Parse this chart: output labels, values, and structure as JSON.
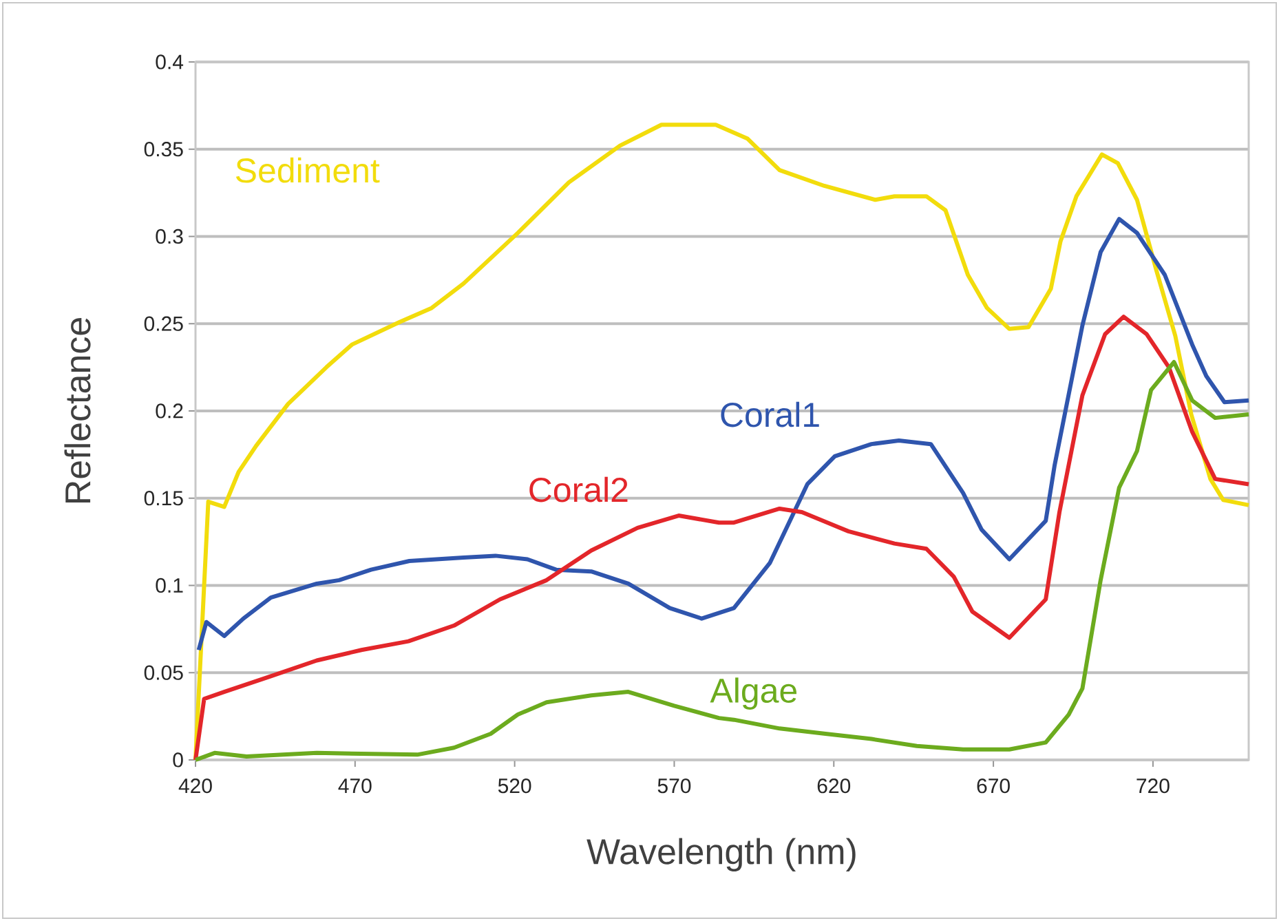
{
  "chart_data": {
    "type": "line",
    "xlabel": "Wavelength (nm)",
    "ylabel": "Reflectance",
    "xlim": [
      420,
      750
    ],
    "xticks": [
      420,
      470,
      520,
      570,
      620,
      670,
      720
    ],
    "ylim": [
      0,
      0.4
    ],
    "yticks": [
      0,
      0.05,
      0.1,
      0.15,
      0.2,
      0.25,
      0.3,
      0.35,
      0.4
    ],
    "grid": "y",
    "marker": "none",
    "line_style": "solid",
    "series": [
      {
        "name": "Sediment",
        "color": "#f2dc0c",
        "x": [
          420,
          424,
          429,
          433.5,
          439,
          449,
          461,
          469,
          484,
          494,
          504,
          521,
          537,
          553,
          566,
          583,
          593,
          603,
          617,
          633,
          639,
          649,
          655,
          662,
          668,
          675,
          681,
          688,
          691,
          696,
          704,
          709,
          715,
          721,
          727,
          732,
          738,
          742,
          750
        ],
        "values": [
          0,
          0.148,
          0.145,
          0.165,
          0.18,
          0.204,
          0.225,
          0.238,
          0.251,
          0.259,
          0.273,
          0.302,
          0.331,
          0.352,
          0.364,
          0.364,
          0.356,
          0.338,
          0.329,
          0.321,
          0.323,
          0.323,
          0.315,
          0.278,
          0.259,
          0.247,
          0.248,
          0.27,
          0.297,
          0.323,
          0.347,
          0.342,
          0.321,
          0.281,
          0.243,
          0.198,
          0.161,
          0.149,
          0.146
        ]
      },
      {
        "name": "Coral1",
        "color": "#2f55ad",
        "x": [
          421,
          423.4,
          429,
          435,
          443.6,
          458,
          465,
          475,
          487,
          504,
          514,
          524,
          533,
          544,
          555.6,
          568.6,
          578.6,
          588.7,
          600,
          611.7,
          620.3,
          631.8,
          640.4,
          650.4,
          660.5,
          666.3,
          675,
          686.4,
          689.2,
          697.9,
          703.6,
          709.4,
          715,
          723.7,
          732.3,
          736.7,
          742.4,
          750
        ],
        "values": [
          0.063,
          0.079,
          0.071,
          0.081,
          0.093,
          0.101,
          0.103,
          0.109,
          0.114,
          0.116,
          0.117,
          0.115,
          0.109,
          0.108,
          0.101,
          0.087,
          0.081,
          0.087,
          0.113,
          0.158,
          0.174,
          0.181,
          0.183,
          0.181,
          0.153,
          0.132,
          0.115,
          0.137,
          0.169,
          0.249,
          0.291,
          0.31,
          0.302,
          0.278,
          0.238,
          0.22,
          0.205,
          0.206
        ]
      },
      {
        "name": "Coral2",
        "color": "#e3262a",
        "x": [
          420,
          422.7,
          429,
          443.6,
          458,
          472,
          486.7,
          501,
          515.4,
          530,
          544,
          558.5,
          571.4,
          584,
          588.7,
          603,
          610,
          624.6,
          639,
          649,
          657.6,
          663.4,
          675,
          686.4,
          690.7,
          697.9,
          705,
          710.8,
          718,
          725,
          732.3,
          739.5,
          750
        ],
        "values": [
          0,
          0.035,
          0.039,
          0.048,
          0.057,
          0.063,
          0.068,
          0.077,
          0.092,
          0.103,
          0.12,
          0.133,
          0.14,
          0.136,
          0.136,
          0.144,
          0.142,
          0.131,
          0.124,
          0.121,
          0.105,
          0.085,
          0.07,
          0.092,
          0.142,
          0.209,
          0.244,
          0.254,
          0.244,
          0.225,
          0.188,
          0.161,
          0.158
        ]
      },
      {
        "name": "Algae",
        "color": "#6cab1e",
        "x": [
          420,
          426,
          436,
          458,
          489.5,
          501,
          512.5,
          521,
          530,
          544,
          555.6,
          570,
          584,
          588.7,
          603,
          617.4,
          631.8,
          646,
          660.5,
          675,
          686.4,
          693.6,
          697.9,
          703.6,
          709.4,
          715,
          719.4,
          726.6,
          732.3,
          739.5,
          750
        ],
        "values": [
          0,
          0.004,
          0.002,
          0.004,
          0.003,
          0.007,
          0.015,
          0.026,
          0.033,
          0.037,
          0.039,
          0.031,
          0.024,
          0.023,
          0.018,
          0.015,
          0.012,
          0.008,
          0.006,
          0.006,
          0.01,
          0.026,
          0.041,
          0.103,
          0.156,
          0.177,
          0.212,
          0.228,
          0.206,
          0.196,
          0.198
        ]
      }
    ]
  }
}
